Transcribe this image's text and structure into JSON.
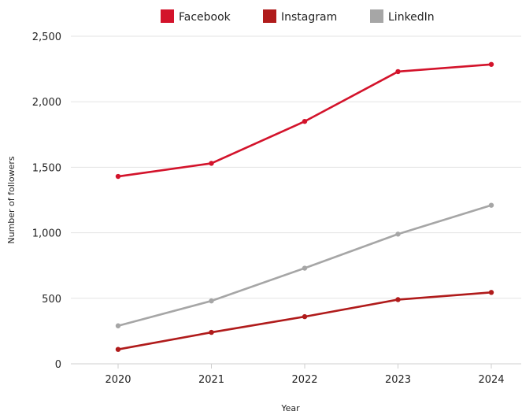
{
  "chart_data": {
    "type": "line",
    "title": "",
    "xlabel": "Year",
    "ylabel": "Number of followers",
    "categories": [
      "2020",
      "2021",
      "2022",
      "2023",
      "2024"
    ],
    "ylim": [
      0,
      2500
    ],
    "yticks": [
      0,
      500,
      1000,
      1500,
      2000,
      2500
    ],
    "ytick_labels": [
      "0",
      "500",
      "1,000",
      "1,500",
      "2,000",
      "2,500"
    ],
    "grid": true,
    "legend_position": "top",
    "series": [
      {
        "name": "Facebook",
        "color": "#d3132b",
        "values": [
          1430,
          1530,
          1850,
          2230,
          2285
        ]
      },
      {
        "name": "Instagram",
        "color": "#b01b1b",
        "values": [
          110,
          240,
          360,
          490,
          545
        ]
      },
      {
        "name": "LinkedIn",
        "color": "#a6a6a6",
        "values": [
          290,
          480,
          730,
          990,
          1210
        ]
      }
    ]
  }
}
